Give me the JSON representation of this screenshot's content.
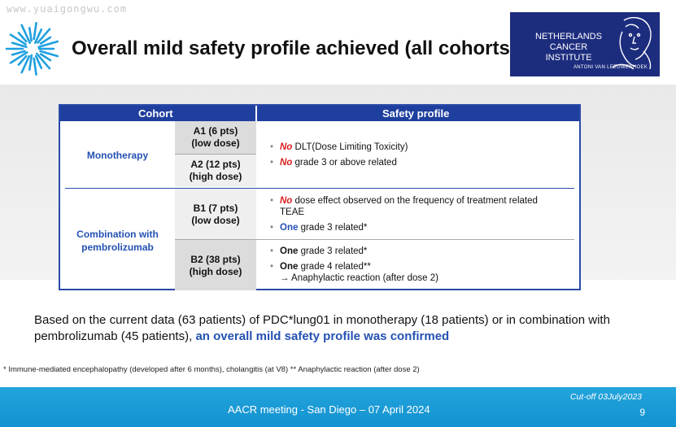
{
  "watermark": "www.yuaigongwu.com",
  "title": "Overall mild safety profile achieved (all cohorts)",
  "institute_logo": {
    "lines": [
      "NETHERLANDS",
      "CANCER",
      "INSTITUTE"
    ],
    "subtitle": "ANTONI VAN LEEUWENHOEK",
    "colors": {
      "background": "#1d2d7e"
    }
  },
  "table": {
    "headers": {
      "cohort": "Cohort",
      "safety": "Safety profile"
    },
    "groups": [
      {
        "name": "Monotherapy",
        "cohorts": [
          {
            "id": "A1 (6 pts)",
            "dose": "(low dose)"
          },
          {
            "id": "A2 (12 pts)",
            "dose": "(high dose)"
          }
        ],
        "profile": [
          {
            "lead": "No",
            "rest": " DLT(Dose Limiting Toxicity)"
          },
          {
            "lead": "No",
            "rest": " grade 3 or above related"
          }
        ]
      },
      {
        "name": "Combination with pembrolizumab",
        "cohorts": [
          {
            "id": "B1 (7 pts)",
            "dose": "(low dose)"
          },
          {
            "id": "B2 (38 pts)",
            "dose": "(high dose)"
          }
        ],
        "profile_b1": [
          {
            "lead": "No",
            "rest": " dose effect observed on the frequency of treatment related",
            "rest2": "TEAE"
          },
          {
            "lead": "One",
            "rest": " grade 3 related*"
          }
        ],
        "profile_b2": [
          {
            "lead": "One",
            "rest": " grade 3 related*"
          },
          {
            "lead": "One",
            "rest": " grade 4 related**",
            "sub": "→ Anaphylactic reaction (after dose 2)"
          }
        ]
      }
    ]
  },
  "summary": {
    "text": "Based on the current data (63 patients) of PDC*lung01 in monotherapy (18 patients) or in combination with pembrolizumab (45 patients), ",
    "highlight": "an overall mild safety profile was confirmed"
  },
  "footnote": "* Immune-mediated encephalopathy (developed after 6 months), cholangitis (at V8) ** Anaphylactic reaction (after dose 2)",
  "footer": {
    "cutoff": "Cut-off 03July2023",
    "meeting": "AACR meeting - San Diego – 07 April 2024",
    "page": "9"
  },
  "colors": {
    "accent": "#2451b3",
    "negative": "#d81e1e",
    "footer": "#1a9ad6"
  }
}
